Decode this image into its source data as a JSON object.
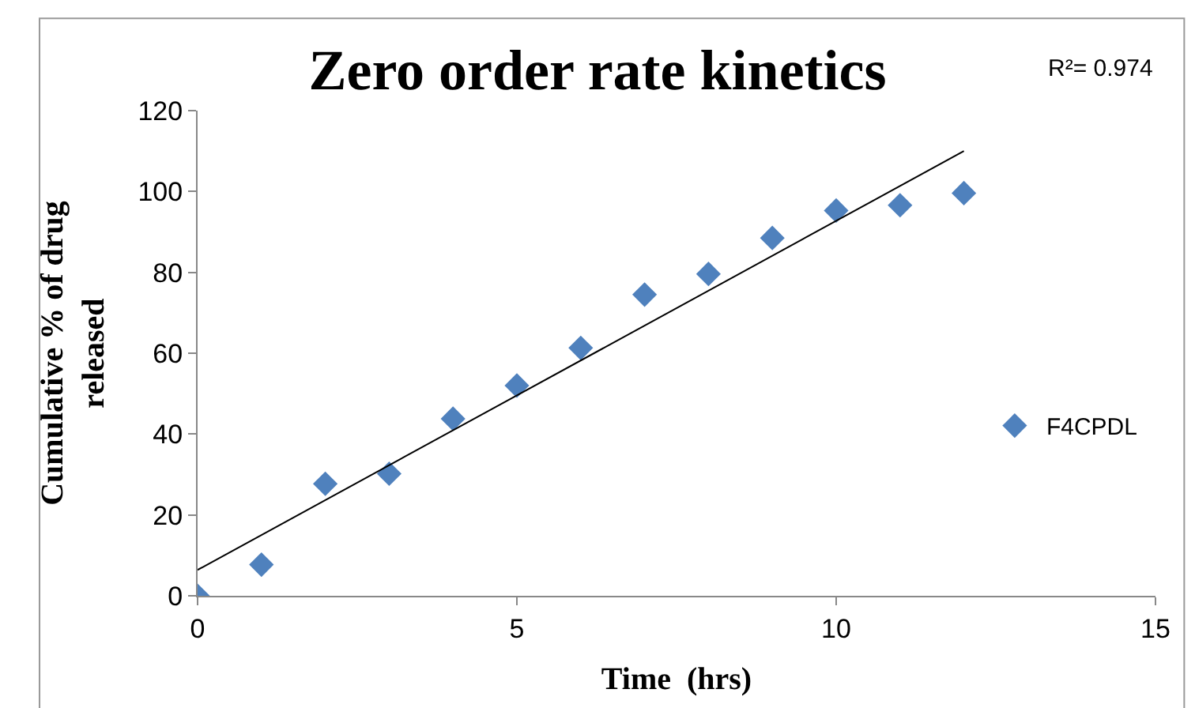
{
  "chart_data": {
    "type": "scatter",
    "title": "Zero order rate kinetics",
    "xlabel": "Time  (hrs)",
    "ylabel": "Cumulative % of drug\nreleased",
    "x": [
      0,
      1,
      2,
      3,
      4,
      5,
      6,
      7,
      8,
      9,
      10,
      11,
      12
    ],
    "series": [
      {
        "name": "F4CPDL",
        "color": "#4f81bd",
        "values": [
          0,
          7.7,
          27.7,
          30.2,
          43.8,
          52,
          61.3,
          74.5,
          79.6,
          88.5,
          95.3,
          96.6,
          99.6
        ]
      },
      {
        "type": "line",
        "marker": "none",
        "color": "#000000",
        "x": [
          0,
          12
        ],
        "values": [
          6.4,
          110
        ]
      }
    ],
    "annotations": [
      "R²= 0.974"
    ],
    "xlim": [
      0,
      15
    ],
    "xticks": [
      0,
      5,
      10,
      15
    ],
    "ylim": [
      0,
      120
    ],
    "yticks": [
      0,
      20,
      40,
      60,
      80,
      100,
      120
    ],
    "legend": "right",
    "marker": "diamond",
    "line_style": "solid"
  }
}
